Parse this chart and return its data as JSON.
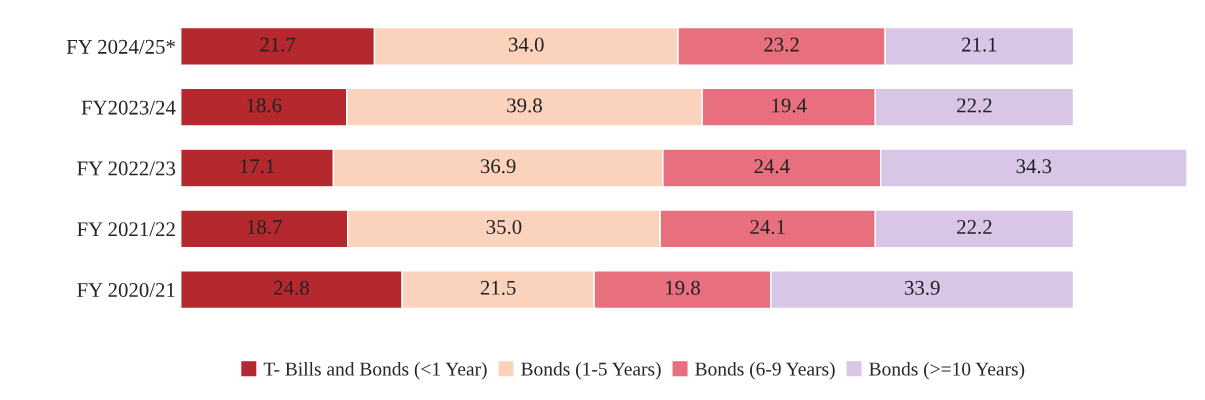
{
  "chart_data": {
    "type": "bar",
    "orientation": "horizontal",
    "stacked": true,
    "legend": "bottom",
    "grid": false,
    "tick_labels": "y",
    "categories": [
      "FY 2024/25*",
      "FY2023/24",
      "FY 2022/23",
      "FY 2021/22",
      "FY 2020/21"
    ],
    "series": [
      {
        "name": "T- Bills and Bonds (<1 Year)",
        "color": "#b5292e",
        "values": [
          21.7,
          18.6,
          17.1,
          18.7,
          24.8
        ],
        "value_labels": [
          "21.7",
          "18.6",
          "17.1",
          "18.7",
          "24.8"
        ]
      },
      {
        "name": "Bonds (1-5 Years)",
        "color": "#fbd3bd",
        "values": [
          34.0,
          39.8,
          36.9,
          35.0,
          21.5
        ],
        "value_labels": [
          "34.0",
          "39.8",
          "36.9",
          "35.0",
          "21.5"
        ]
      },
      {
        "name": "Bonds (6-9 Years)",
        "color": "#e8707e",
        "values": [
          23.2,
          19.4,
          24.4,
          24.1,
          19.8
        ],
        "value_labels": [
          "23.2",
          "19.4",
          "24.4",
          "24.1",
          "19.8"
        ]
      },
      {
        "name": "Bonds (>=10 Years)",
        "color": "#d9c6e6",
        "values": [
          21.1,
          22.2,
          34.3,
          22.2,
          33.9
        ],
        "value_labels": [
          "21.1",
          "22.2",
          "34.3",
          "22.2",
          "33.9"
        ]
      }
    ]
  }
}
